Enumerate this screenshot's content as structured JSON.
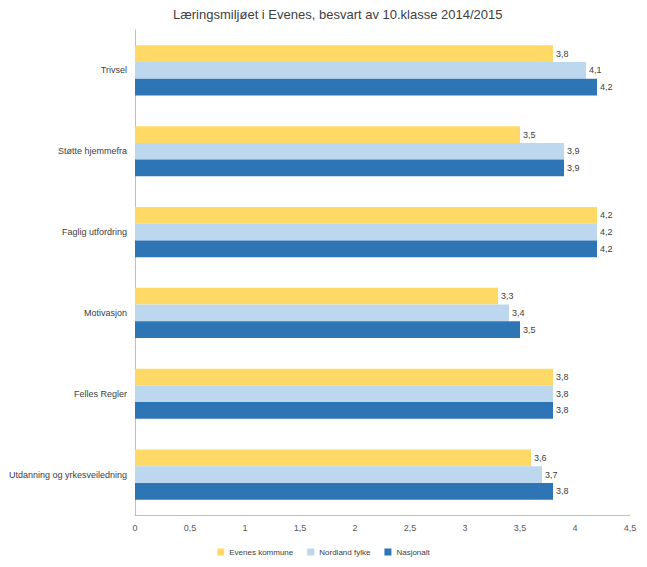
{
  "chart_data": {
    "type": "bar",
    "orientation": "horizontal",
    "title": "Læringsmiljøet i Evenes, besvart av 10.klasse 2014/2015",
    "categories": [
      "Trivsel",
      "Støtte hjemmefra",
      "Faglig utfordring",
      "Motivasjon",
      "Felles Regler",
      "Utdanning og yrkesveiledning"
    ],
    "series": [
      {
        "name": "Evenes kommune",
        "color": "#FFD966",
        "values": [
          3.8,
          3.5,
          4.2,
          3.3,
          3.8,
          3.6
        ],
        "value_labels": [
          "3,8",
          "3,5",
          "4,2",
          "3,3",
          "3,8",
          "3,6"
        ]
      },
      {
        "name": "Nordland fylke",
        "color": "#BDD7EE",
        "values": [
          4.1,
          3.9,
          4.2,
          3.4,
          3.8,
          3.7
        ],
        "value_labels": [
          "4,1",
          "3,9",
          "4,2",
          "3,4",
          "3,8",
          "3,7"
        ]
      },
      {
        "name": "Nasjonalt",
        "color": "#2E75B6",
        "values": [
          4.2,
          3.9,
          4.2,
          3.5,
          3.8,
          3.8
        ],
        "value_labels": [
          "4,2",
          "3,9",
          "4,2",
          "3,5",
          "3,8",
          "3,8"
        ]
      }
    ],
    "xlim": [
      0,
      4.5
    ],
    "xticks": [
      0,
      {
        "value": 0.5,
        "label": "0,5"
      },
      1,
      {
        "value": 1.5,
        "label": "1,5"
      },
      2,
      {
        "value": 2.5,
        "label": "2,5"
      },
      3,
      {
        "value": 3.5,
        "label": "3,5"
      },
      4,
      {
        "value": 4.5,
        "label": "4,5"
      }
    ],
    "data_labels": true,
    "grid": false,
    "legend": "bottom"
  }
}
